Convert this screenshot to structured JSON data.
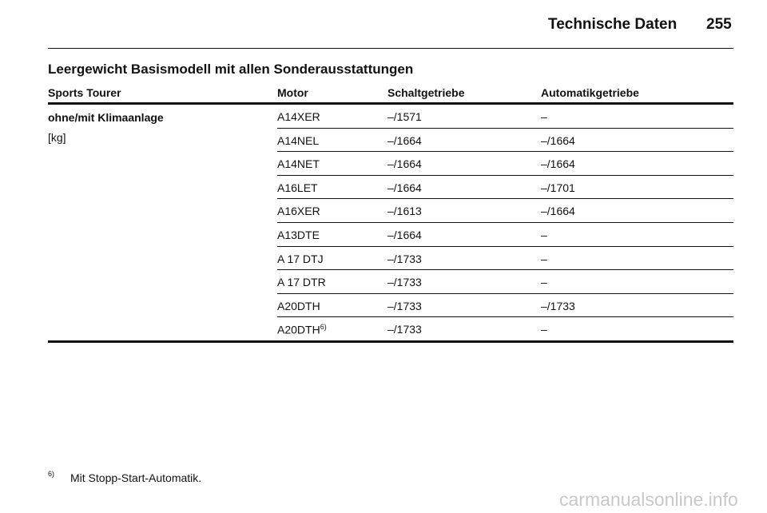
{
  "header": {
    "title": "Technische Daten",
    "page": "255"
  },
  "section_title": "Leergewicht Basismodell mit allen Sonderausstattungen",
  "table": {
    "columns": [
      "Sports Tourer",
      "Motor",
      "Schaltgetriebe",
      "Automatikgetriebe"
    ],
    "group_label": "ohne/mit Klimaanlage",
    "group_unit": "[kg]",
    "rows": [
      {
        "motor": "A14XER",
        "manual": "–/1571",
        "automatic": "–"
      },
      {
        "motor": "A14NEL",
        "manual": "–/1664",
        "automatic": "–/1664"
      },
      {
        "motor": "A14NET",
        "manual": "–/1664",
        "automatic": "–/1664"
      },
      {
        "motor": "A16LET",
        "manual": "–/1664",
        "automatic": "–/1701"
      },
      {
        "motor": "A16XER",
        "manual": "–/1613",
        "automatic": "–/1664"
      },
      {
        "motor": "A13DTE",
        "manual": "–/1664",
        "automatic": "–"
      },
      {
        "motor": "A 17 DTJ",
        "manual": "–/1733",
        "automatic": "–"
      },
      {
        "motor": "A 17 DTR",
        "manual": "–/1733",
        "automatic": "–"
      },
      {
        "motor": "A20DTH",
        "manual": "–/1733",
        "automatic": "–/1733"
      },
      {
        "motor": "A20DTH",
        "motor_note": "6)",
        "manual": "–/1733",
        "automatic": "–"
      }
    ]
  },
  "footnote": {
    "marker": "6)",
    "text": "Mit Stopp-Start-Automatik."
  },
  "watermark": "carmanualsonline.info"
}
